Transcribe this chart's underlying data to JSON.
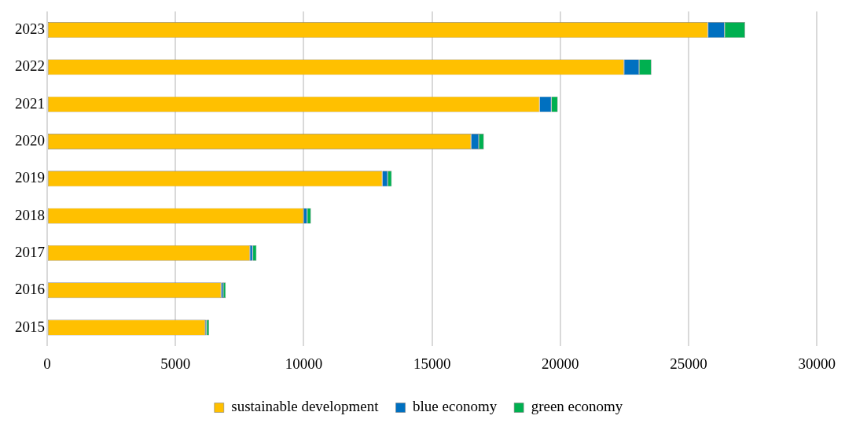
{
  "chart_data": {
    "type": "bar",
    "orientation": "horizontal",
    "stacked": true,
    "categories": [
      "2023",
      "2022",
      "2021",
      "2020",
      "2019",
      "2018",
      "2017",
      "2016",
      "2015"
    ],
    "series": [
      {
        "name": "sustainable development",
        "color": "#ffc000",
        "values": [
          25750,
          22480,
          19190,
          16520,
          13060,
          9990,
          7900,
          6780,
          6160
        ]
      },
      {
        "name": "blue economy",
        "color": "#0070c0",
        "values": [
          650,
          590,
          460,
          300,
          210,
          140,
          110,
          80,
          50
        ]
      },
      {
        "name": "green economy",
        "color": "#00b050",
        "values": [
          800,
          480,
          250,
          200,
          160,
          150,
          150,
          100,
          100
        ]
      }
    ],
    "xlim": [
      0,
      30000
    ],
    "xticks": [
      0,
      5000,
      10000,
      15000,
      20000,
      25000,
      30000
    ],
    "grid": "x",
    "legend": "bottom"
  }
}
